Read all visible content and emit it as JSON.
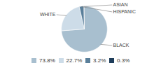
{
  "chart_data": {
    "type": "pie",
    "categories": [
      "BLACK",
      "WHITE",
      "HISPANIC",
      "ASIAN"
    ],
    "values": [
      73.8,
      22.7,
      3.2,
      0.3
    ],
    "colors": [
      "#a8bfcf",
      "#cddce8",
      "#5a7f9a",
      "#1e3d5a"
    ],
    "value_labels": [
      "73.8%",
      "22.7%",
      "3.2%",
      "0.3%"
    ],
    "legend": "bottom"
  }
}
